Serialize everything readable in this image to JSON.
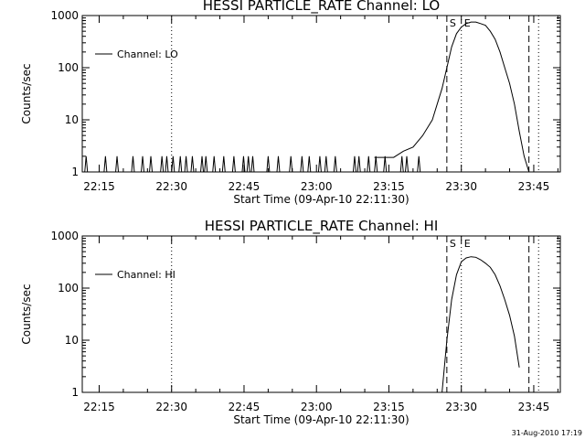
{
  "footer": {
    "datestamp": "31-Aug-2010 17:19"
  },
  "chart_data": [
    {
      "type": "line",
      "title": "HESSI PARTICLE_RATE Channel: LO",
      "xlabel": "Start Time (09-Apr-10 22:11:30)",
      "ylabel": "Counts/sec",
      "y_scale": "log",
      "ylim": [
        1,
        1000
      ],
      "xlim_minutes": [
        0,
        99
      ],
      "y_ticks": [
        1,
        10,
        100,
        1000
      ],
      "y_tick_labels": [
        "1",
        "10",
        "100",
        "1000"
      ],
      "x_ticks": [
        "22:15",
        "22:30",
        "22:45",
        "23:00",
        "23:15",
        "23:30",
        "23:45"
      ],
      "legend": {
        "label": "Channel: LO",
        "position": "top-left"
      },
      "vlines": [
        {
          "time": "22:30",
          "style": "dotted"
        },
        {
          "time": "23:27",
          "style": "dashed",
          "label": "S"
        },
        {
          "time": "23:30",
          "style": "dotted",
          "label": "E"
        },
        {
          "time": "23:44",
          "style": "dashed"
        },
        {
          "time": "23:46",
          "style": "dotted"
        }
      ],
      "series": [
        {
          "name": "Channel: LO",
          "noise_spikes_minutes": [
            0.8,
            4.8,
            7.2,
            10.5,
            12.5,
            14.2,
            16.5,
            17.5,
            18.8,
            20.3,
            21.5,
            22.8,
            24.8,
            25.6,
            27.3,
            29.3,
            31.4,
            33.4,
            34.4,
            35.3,
            38.5,
            40.6,
            43.2,
            45.5,
            47,
            49.2,
            50.5,
            52.4,
            56.4,
            57.3,
            59.3,
            60.8,
            62.7,
            66.2,
            67.2,
            69.7
          ],
          "curve": {
            "x": [
              "23:12",
              "23:16",
              "23:18",
              "23:20",
              "23:22",
              "23:24",
              "23:25",
              "23:26",
              "23:27",
              "23:28",
              "23:29",
              "23:30",
              "23:31",
              "23:32",
              "23:33",
              "23:34",
              "23:35",
              "23:36",
              "23:37",
              "23:38",
              "23:39",
              "23:40",
              "23:41",
              "23:42",
              "23:43",
              "23:44",
              "23:45",
              "23:46"
            ],
            "y": [
              1.9,
              1.9,
              2.5,
              3,
              5,
              10,
              20,
              40,
              100,
              250,
              450,
              600,
              700,
              750,
              750,
              700,
              650,
              500,
              350,
              200,
              100,
              50,
              20,
              6,
              2,
              1,
              1,
              1
            ]
          }
        }
      ]
    },
    {
      "type": "line",
      "title": "HESSI PARTICLE_RATE Channel: HI",
      "xlabel": "Start Time (09-Apr-10 22:11:30)",
      "ylabel": "Counts/sec",
      "y_scale": "log",
      "ylim": [
        1,
        1000
      ],
      "xlim_minutes": [
        0,
        99
      ],
      "y_ticks": [
        1,
        10,
        100,
        1000
      ],
      "y_tick_labels": [
        "1",
        "10",
        "100",
        "1000"
      ],
      "x_ticks": [
        "22:15",
        "22:30",
        "22:45",
        "23:00",
        "23:15",
        "23:30",
        "23:45"
      ],
      "legend": {
        "label": "Channel: HI",
        "position": "top-left"
      },
      "vlines": [
        {
          "time": "22:30",
          "style": "dotted"
        },
        {
          "time": "23:27",
          "style": "dashed",
          "label": "S"
        },
        {
          "time": "23:30",
          "style": "dotted",
          "label": "E"
        },
        {
          "time": "23:44",
          "style": "dashed"
        },
        {
          "time": "23:46",
          "style": "dotted"
        }
      ],
      "series": [
        {
          "name": "Channel: HI",
          "noise_spikes_minutes": [],
          "curve": {
            "x": [
              "23:26",
              "23:27",
              "23:28",
              "23:29",
              "23:30",
              "23:31",
              "23:32",
              "23:33",
              "23:34",
              "23:35",
              "23:36",
              "23:37",
              "23:38",
              "23:39",
              "23:40",
              "23:41",
              "23:42"
            ],
            "y": [
              1,
              10,
              60,
              180,
              320,
              380,
              400,
              390,
              350,
              300,
              250,
              180,
              110,
              60,
              30,
              12,
              3
            ]
          }
        }
      ]
    }
  ]
}
